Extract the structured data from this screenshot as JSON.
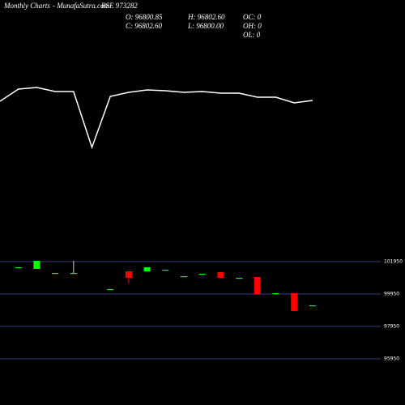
{
  "header": {
    "site": "Monthly Charts",
    "brand": "- MunafaSutra.com",
    "symbol": "BSE 973282",
    "open": "O: 96800.85",
    "high": "H: 96802.60",
    "oc": "OC: 0",
    "close": "C: 96802.60",
    "low": "L: 96800.00",
    "oh": "OH: 0",
    "ol": "OL: 0"
  },
  "chart_data": [
    {
      "type": "line",
      "color": "#ffffff",
      "ylim": [
        0,
        200
      ],
      "values": [
        75,
        90,
        92,
        87,
        87,
        18,
        81,
        86,
        89,
        88,
        86,
        87,
        85,
        85,
        80,
        80,
        73,
        76
      ]
    },
    {
      "type": "candlestick",
      "up_color": "#00ff00",
      "down_color": "#ff0000",
      "grid": true,
      "ylim": [
        94600,
        102350
      ],
      "yticks": [
        101950,
        99950,
        97950,
        95950
      ],
      "open": [
        null,
        101600,
        101500,
        101250,
        101250,
        null,
        100250,
        101350,
        101350,
        101450,
        101050,
        101200,
        101300,
        100950,
        101000,
        100000,
        100000,
        99250
      ],
      "close": [
        null,
        101600,
        102000,
        101250,
        101250,
        null,
        100250,
        100950,
        101600,
        101450,
        101050,
        101200,
        100950,
        100950,
        99950,
        100000,
        98900,
        99250
      ],
      "high": [
        null,
        101600,
        102000,
        101250,
        102000,
        null,
        100250,
        101350,
        101600,
        101450,
        101050,
        101200,
        101300,
        100950,
        101000,
        100000,
        100000,
        99250
      ],
      "low": [
        null,
        101600,
        101500,
        101250,
        101250,
        null,
        100250,
        100600,
        101350,
        101450,
        101050,
        101200,
        100950,
        100950,
        99950,
        100000,
        98900,
        99250
      ]
    }
  ]
}
